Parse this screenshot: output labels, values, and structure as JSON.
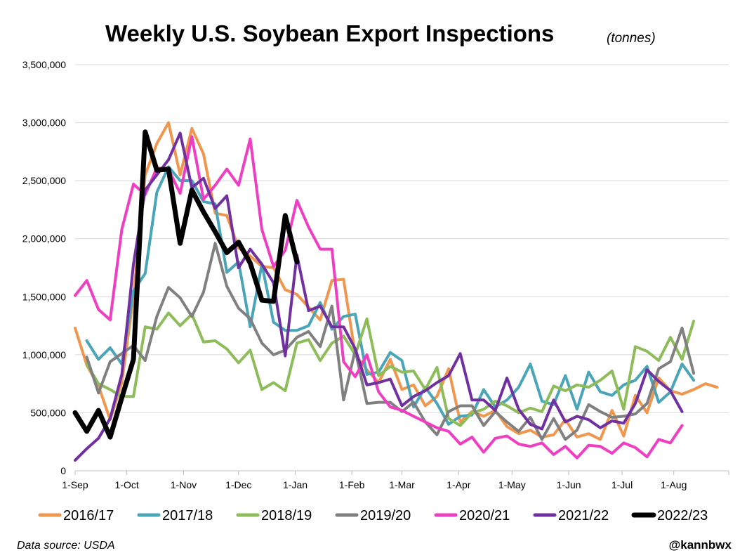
{
  "chart_data": {
    "type": "line",
    "title": "Weekly U.S. Soybean Export Inspections",
    "subtitle": "(tonnes)",
    "xlabel": "",
    "ylabel": "",
    "ylim": [
      0,
      3500000
    ],
    "xlim": [
      0,
      56
    ],
    "y_ticks": [
      {
        "value": 0,
        "label": "0"
      },
      {
        "value": 500000,
        "label": "500,000"
      },
      {
        "value": 1000000,
        "label": "1,000,000"
      },
      {
        "value": 1500000,
        "label": "1,500,000"
      },
      {
        "value": 2000000,
        "label": "2,000,000"
      },
      {
        "value": 2500000,
        "label": "2,500,000"
      },
      {
        "value": 3000000,
        "label": "3,000,000"
      },
      {
        "value": 3500000,
        "label": "3,500,000"
      }
    ],
    "x_ticks": [
      {
        "value": 0,
        "label": "1-Sep"
      },
      {
        "value": 4.43,
        "label": "1-Oct"
      },
      {
        "value": 9.29,
        "label": "1-Nov"
      },
      {
        "value": 14.0,
        "label": "1-Dec"
      },
      {
        "value": 18.86,
        "label": "1-Jan"
      },
      {
        "value": 23.71,
        "label": "1-Feb"
      },
      {
        "value": 28.0,
        "label": "1-Mar"
      },
      {
        "value": 32.86,
        "label": "1-Apr"
      },
      {
        "value": 37.43,
        "label": "1-May"
      },
      {
        "value": 42.29,
        "label": "1-Jun"
      },
      {
        "value": 46.86,
        "label": "1-Jul"
      },
      {
        "value": 51.29,
        "label": "1-Aug"
      }
    ],
    "grid": true,
    "legend_position": "bottom",
    "series": [
      {
        "name": "2016/17",
        "color": "#f0974f",
        "width": 4,
        "start": 0,
        "values": [
          1230000,
          910000,
          730000,
          440000,
          760000,
          1500000,
          2550000,
          2820000,
          3000000,
          2550000,
          2950000,
          2730000,
          2220000,
          2200000,
          1920000,
          1850000,
          1760000,
          1750000,
          1560000,
          1520000,
          1410000,
          1300000,
          1640000,
          1650000,
          1000000,
          870000,
          760000,
          960000,
          700000,
          740000,
          560000,
          640000,
          880000,
          420000,
          510000,
          470000,
          520000,
          380000,
          320000,
          350000,
          290000,
          310000,
          440000,
          290000,
          320000,
          270000,
          520000,
          300000,
          650000,
          500000,
          800000,
          690000,
          660000,
          700000,
          750000,
          720000
        ]
      },
      {
        "name": "2017/18",
        "color": "#4aa5b8",
        "width": 4,
        "start": 1,
        "values": [
          1120000,
          960000,
          1060000,
          920000,
          1550000,
          1700000,
          2400000,
          2620000,
          2500000,
          2500000,
          2320000,
          2300000,
          1710000,
          1800000,
          1240000,
          1780000,
          1280000,
          1210000,
          1210000,
          1250000,
          1450000,
          1220000,
          1330000,
          1350000,
          830000,
          850000,
          1020000,
          950000,
          550000,
          720000,
          580000,
          400000,
          470000,
          480000,
          700000,
          550000,
          610000,
          720000,
          920000,
          600000,
          570000,
          820000,
          530000,
          850000,
          680000,
          650000,
          740000,
          780000,
          900000,
          590000,
          680000,
          920000,
          780000
        ]
      },
      {
        "name": "2018/19",
        "color": "#8fbc5a",
        "width": 4,
        "start": 1,
        "values": [
          920000,
          750000,
          700000,
          640000,
          640000,
          1240000,
          1220000,
          1360000,
          1250000,
          1350000,
          1110000,
          1120000,
          1050000,
          930000,
          1040000,
          700000,
          760000,
          690000,
          1100000,
          1130000,
          950000,
          1100000,
          1160000,
          1000000,
          1310000,
          820000,
          900000,
          850000,
          860000,
          700000,
          890000,
          450000,
          390000,
          500000,
          530000,
          600000,
          560000,
          500000,
          540000,
          510000,
          730000,
          690000,
          740000,
          720000,
          780000,
          860000,
          530000,
          1070000,
          1030000,
          950000,
          1150000,
          960000,
          1290000
        ]
      },
      {
        "name": "2019/20",
        "color": "#808080",
        "width": 4,
        "start": 1,
        "values": [
          980000,
          670000,
          940000,
          1010000,
          1080000,
          950000,
          1330000,
          1580000,
          1490000,
          1330000,
          1540000,
          1960000,
          1590000,
          1400000,
          1310000,
          1100000,
          1000000,
          1040000,
          1150000,
          1200000,
          1070000,
          1420000,
          610000,
          1040000,
          580000,
          590000,
          590000,
          510000,
          590000,
          420000,
          310000,
          510000,
          560000,
          560000,
          390000,
          510000,
          420000,
          340000,
          460000,
          270000,
          450000,
          270000,
          350000,
          570000,
          510000,
          460000,
          470000,
          490000,
          580000,
          880000,
          940000,
          1230000,
          840000
        ]
      },
      {
        "name": "2020/21",
        "color": "#ee3fc2",
        "width": 4,
        "start": 0,
        "values": [
          1510000,
          1640000,
          1390000,
          1300000,
          2080000,
          2470000,
          2380000,
          2610000,
          2600000,
          2390000,
          2880000,
          2340000,
          2460000,
          2600000,
          2460000,
          2860000,
          2080000,
          1760000,
          1900000,
          2330000,
          2100000,
          1910000,
          1910000,
          940000,
          810000,
          1000000,
          680000,
          550000,
          520000,
          470000,
          420000,
          370000,
          340000,
          230000,
          290000,
          160000,
          280000,
          300000,
          230000,
          210000,
          240000,
          140000,
          210000,
          110000,
          220000,
          210000,
          150000,
          240000,
          200000,
          120000,
          270000,
          240000,
          390000
        ]
      },
      {
        "name": "2021/22",
        "color": "#7030a0",
        "width": 4,
        "start": 0,
        "values": [
          90000,
          190000,
          280000,
          450000,
          830000,
          1780000,
          2420000,
          2550000,
          2680000,
          2910000,
          2440000,
          2520000,
          2260000,
          2370000,
          1750000,
          1910000,
          1780000,
          1620000,
          990000,
          1860000,
          1380000,
          1420000,
          1240000,
          1240000,
          1050000,
          740000,
          760000,
          790000,
          560000,
          640000,
          690000,
          760000,
          820000,
          1010000,
          610000,
          610000,
          520000,
          800000,
          530000,
          400000,
          360000,
          610000,
          420000,
          470000,
          440000,
          370000,
          430000,
          410000,
          580000,
          870000,
          770000,
          690000,
          510000
        ]
      },
      {
        "name": "2022/23",
        "color": "#000000",
        "width": 7,
        "start": 0,
        "values": [
          500000,
          340000,
          520000,
          290000,
          630000,
          960000,
          2920000,
          2590000,
          2600000,
          1960000,
          2420000,
          2230000,
          2060000,
          1880000,
          1970000,
          1790000,
          1470000,
          1460000,
          2200000,
          1800000
        ]
      }
    ]
  },
  "footer": {
    "source": "Data source: USDA",
    "handle": "@kannbwx"
  }
}
